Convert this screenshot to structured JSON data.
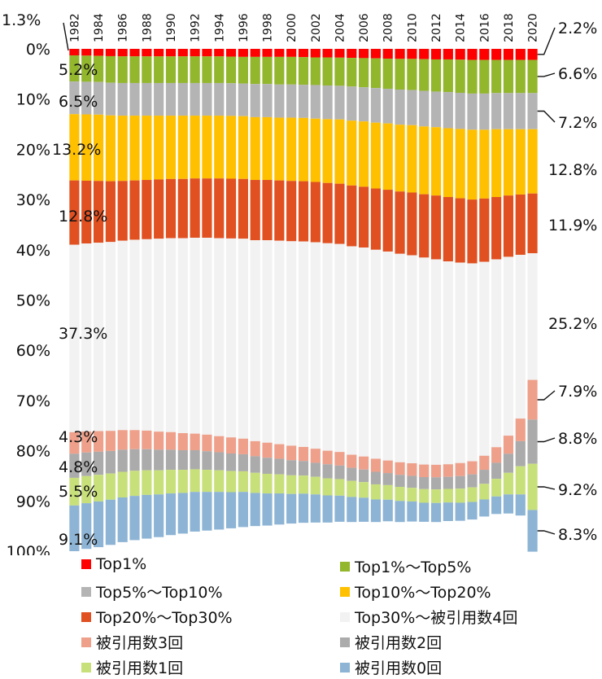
{
  "chart_data": {
    "type": "bar",
    "stacked": true,
    "orientation": "vertical",
    "y_axis_direction": "top-to-bottom",
    "y_ticks": [
      "0%",
      "10%",
      "20%",
      "30%",
      "40%",
      "50%",
      "60%",
      "70%",
      "80%",
      "90%",
      "100%"
    ],
    "ylim": [
      0,
      100
    ],
    "categories": [
      1982,
      1983,
      1984,
      1985,
      1986,
      1987,
      1988,
      1989,
      1990,
      1991,
      1992,
      1993,
      1994,
      1995,
      1996,
      1997,
      1998,
      1999,
      2000,
      2001,
      2002,
      2003,
      2004,
      2005,
      2006,
      2007,
      2008,
      2009,
      2010,
      2011,
      2012,
      2013,
      2014,
      2015,
      2016,
      2017,
      2018,
      2019,
      2020
    ],
    "category_labels": [
      "1982",
      "1984",
      "1986",
      "1988",
      "1990",
      "1992",
      "1994",
      "1996",
      "1998",
      "2000",
      "2002",
      "2004",
      "2006",
      "2008",
      "2010",
      "2012",
      "2014",
      "2016",
      "2018",
      "2020"
    ],
    "series": [
      {
        "name": "Top1%",
        "color": "#ff0000",
        "values": [
          1.3,
          1.35,
          1.4,
          1.45,
          1.5,
          1.5,
          1.5,
          1.5,
          1.5,
          1.5,
          1.5,
          1.5,
          1.5,
          1.55,
          1.6,
          1.6,
          1.6,
          1.6,
          1.6,
          1.65,
          1.7,
          1.7,
          1.75,
          1.8,
          1.85,
          1.9,
          1.95,
          2.0,
          2.0,
          2.05,
          2.1,
          2.1,
          2.15,
          2.2,
          2.2,
          2.2,
          2.2,
          2.2,
          2.2
        ]
      },
      {
        "name": "Top1%～Top5%",
        "color": "#92b62c",
        "values": [
          5.2,
          5.2,
          5.2,
          5.3,
          5.3,
          5.3,
          5.3,
          5.3,
          5.3,
          5.3,
          5.3,
          5.3,
          5.3,
          5.3,
          5.3,
          5.4,
          5.4,
          5.5,
          5.5,
          5.5,
          5.5,
          5.6,
          5.6,
          5.7,
          5.8,
          5.9,
          6.0,
          6.1,
          6.2,
          6.3,
          6.4,
          6.5,
          6.6,
          6.7,
          6.7,
          6.6,
          6.6,
          6.6,
          6.6
        ]
      },
      {
        "name": "Top5%～Top10%",
        "color": "#b4b4b4",
        "values": [
          6.5,
          6.5,
          6.5,
          6.5,
          6.5,
          6.5,
          6.5,
          6.5,
          6.5,
          6.5,
          6.5,
          6.5,
          6.5,
          6.5,
          6.5,
          6.6,
          6.6,
          6.6,
          6.6,
          6.6,
          6.7,
          6.7,
          6.7,
          6.8,
          6.8,
          6.9,
          6.9,
          7.0,
          7.0,
          7.1,
          7.1,
          7.2,
          7.2,
          7.2,
          7.2,
          7.2,
          7.2,
          7.2,
          7.2
        ]
      },
      {
        "name": "Top10%～Top20%",
        "color": "#ffc000",
        "values": [
          13.2,
          13.2,
          13.2,
          13.1,
          13.0,
          12.9,
          12.8,
          12.7,
          12.6,
          12.6,
          12.5,
          12.5,
          12.5,
          12.5,
          12.5,
          12.5,
          12.5,
          12.5,
          12.6,
          12.6,
          12.6,
          12.7,
          12.8,
          12.9,
          13.0,
          13.1,
          13.2,
          13.3,
          13.4,
          13.5,
          13.6,
          13.7,
          13.8,
          13.9,
          13.7,
          13.5,
          13.2,
          13.0,
          12.8
        ]
      },
      {
        "name": "Top20%～Top30%",
        "color": "#e05020",
        "values": [
          12.8,
          12.5,
          12.3,
          12.1,
          11.9,
          11.8,
          11.8,
          11.8,
          11.8,
          11.8,
          11.8,
          11.8,
          11.9,
          11.9,
          11.9,
          12.0,
          12.0,
          12.0,
          12.0,
          12.0,
          12.0,
          12.0,
          12.0,
          12.1,
          12.1,
          12.2,
          12.3,
          12.4,
          12.5,
          12.6,
          12.7,
          12.8,
          12.8,
          12.7,
          12.6,
          12.4,
          12.2,
          12.0,
          11.9
        ]
      },
      {
        "name": "Top30%～被引用数4回",
        "color": "#f2f2f2",
        "values": [
          37.3,
          37.4,
          37.5,
          37.6,
          37.7,
          37.9,
          38.1,
          38.4,
          38.6,
          38.8,
          39.0,
          39.2,
          39.4,
          39.6,
          39.8,
          40.0,
          40.3,
          40.5,
          40.7,
          40.9,
          41.1,
          41.3,
          41.4,
          41.5,
          41.6,
          41.6,
          41.6,
          41.5,
          41.4,
          41.2,
          40.9,
          40.4,
          39.9,
          39.4,
          38.6,
          37.4,
          35.6,
          32.6,
          25.2
        ]
      },
      {
        "name": "被引用数3回",
        "color": "#eea08a",
        "values": [
          4.3,
          4.2,
          4.1,
          4.0,
          3.9,
          3.8,
          3.7,
          3.6,
          3.5,
          3.4,
          3.3,
          3.3,
          3.2,
          3.2,
          3.1,
          3.0,
          3.0,
          2.9,
          2.9,
          2.8,
          2.8,
          2.7,
          2.7,
          2.6,
          2.6,
          2.6,
          2.5,
          2.5,
          2.5,
          2.5,
          2.5,
          2.5,
          2.6,
          2.6,
          2.8,
          3.1,
          3.6,
          4.5,
          7.9
        ]
      },
      {
        "name": "被引用数2回",
        "color": "#ababab",
        "values": [
          4.8,
          4.7,
          4.6,
          4.5,
          4.4,
          4.3,
          4.2,
          4.1,
          4.0,
          3.9,
          3.8,
          3.7,
          3.6,
          3.5,
          3.4,
          3.3,
          3.2,
          3.1,
          3.0,
          2.9,
          2.8,
          2.8,
          2.7,
          2.6,
          2.5,
          2.5,
          2.4,
          2.4,
          2.4,
          2.4,
          2.4,
          2.4,
          2.5,
          2.6,
          2.8,
          3.2,
          3.8,
          5.0,
          8.8
        ]
      },
      {
        "name": "被引用数1回",
        "color": "#c8e07a",
        "values": [
          5.5,
          5.4,
          5.3,
          5.2,
          5.1,
          5.0,
          4.9,
          4.8,
          4.7,
          4.6,
          4.5,
          4.4,
          4.3,
          4.2,
          4.1,
          4.0,
          3.9,
          3.8,
          3.7,
          3.6,
          3.5,
          3.4,
          3.3,
          3.2,
          3.1,
          3.0,
          2.9,
          2.8,
          2.7,
          2.7,
          2.7,
          2.7,
          2.8,
          2.9,
          3.1,
          3.5,
          4.3,
          5.6,
          9.2
        ]
      },
      {
        "name": "被引用数0回",
        "color": "#8db4d4",
        "values": [
          9.1,
          9.1,
          9.1,
          9.0,
          8.9,
          8.8,
          8.7,
          8.5,
          8.3,
          8.1,
          7.9,
          7.7,
          7.5,
          7.2,
          7.0,
          6.6,
          6.4,
          6.2,
          5.9,
          5.8,
          5.6,
          5.4,
          5.2,
          5.0,
          4.8,
          4.5,
          4.3,
          4.2,
          4.0,
          3.8,
          3.8,
          3.7,
          3.6,
          3.5,
          3.4,
          3.5,
          3.8,
          4.2,
          8.3
        ]
      }
    ],
    "left_value_labels": [
      "1.3%",
      "5.2%",
      "6.5%",
      "13.2%",
      "12.8%",
      "37.3%",
      "4.3%",
      "4.8%",
      "5.5%",
      "9.1%"
    ],
    "right_value_labels": [
      "2.2%",
      "6.6%",
      "7.2%",
      "12.8%",
      "11.9%",
      "25.2%",
      "7.9%",
      "8.8%",
      "9.2%",
      "8.3%"
    ],
    "legend_position": "bottom"
  }
}
